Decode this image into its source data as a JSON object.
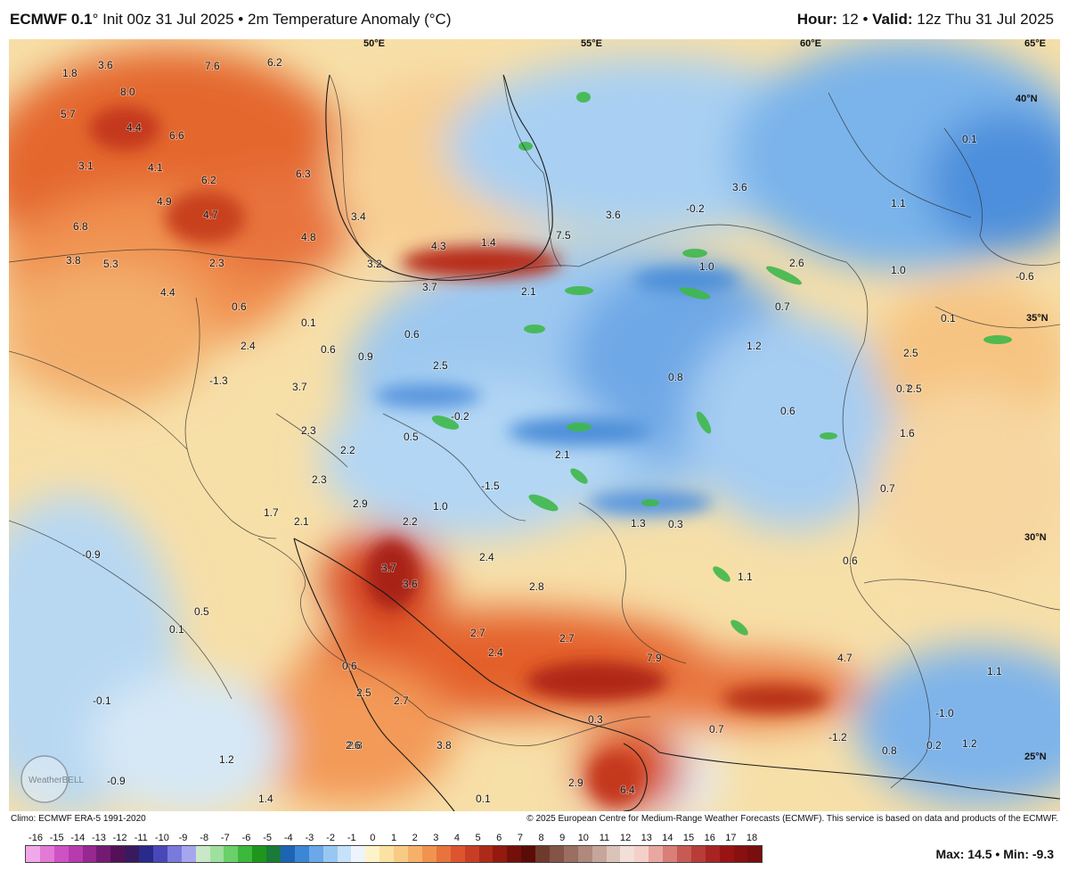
{
  "header": {
    "model": "ECMWF 0.1",
    "model_deg": "°",
    "init_text": "Init 00z 31 Jul 2025",
    "bullet": "•",
    "field": "2m Temperature Anomaly (°C)",
    "hour_label": "Hour:",
    "hour_value": "12",
    "valid_label": "Valid:",
    "valid_value": "12z Thu 31 Jul 2025"
  },
  "map": {
    "coord_labels": [
      "50°E",
      "55°E",
      "60°E",
      "65°E",
      "40°N",
      "35°N",
      "30°N",
      "25°N"
    ],
    "anomaly_labels": [
      "1.8",
      "3.6",
      "7.6",
      "6.2",
      "8.0",
      "5.7",
      "4.4",
      "6.6",
      "3.1",
      "4.1",
      "6.2",
      "6.3",
      "4.9",
      "4.7",
      "6.8",
      "3.4",
      "3.8",
      "5.3",
      "4.8",
      "4.3",
      "1.4",
      "7.5",
      "3.6",
      "3.6",
      "-0.2",
      "2.3",
      "3.2",
      "4.4",
      "3.7",
      "2.1",
      "1.0",
      "2.6",
      "0.6",
      "0.1",
      "0.6",
      "0.9",
      "0.6",
      "2.5",
      "0.7",
      "1.2",
      "2.4",
      "-1.3",
      "3.7",
      "-0.2",
      "0.8",
      "0.6",
      "1.0",
      "0.7",
      "2.3",
      "2.2",
      "0.5",
      "2.1",
      "-1.5",
      "2.3",
      "2.9",
      "1.7",
      "2.1",
      "2.2",
      "1.0",
      "1.3",
      "0.3",
      "-0.9",
      "3.7",
      "3.6",
      "2.4",
      "2.8",
      "1.1",
      "0.5",
      "0.1",
      "2.7",
      "2.7",
      "2.4",
      "7.9",
      "0.6",
      "2.5",
      "2.7",
      "3.8",
      "2.8",
      "0.3",
      "-0.1",
      "2.6",
      "1.2",
      "-0.9",
      "1.4",
      "0.1",
      "2.9",
      "6.4",
      "0.7",
      "-1.2",
      "0.8",
      "0.2",
      "1.2",
      "4.7",
      "1.1",
      "-1.0",
      "0.1",
      "1.1",
      "-0.6",
      "0.1",
      "2.5",
      "2.5",
      "1.6",
      "0.7",
      "0.6",
      "0.6",
      "0.1"
    ],
    "watermark": "WeatherBELL"
  },
  "credits": {
    "climo": "Climo: ECMWF ERA-5 1991-2020",
    "copyright": "© 2025 European Centre for Medium-Range Weather Forecasts (ECMWF). This service is based on data and products of the ECMWF."
  },
  "colorbar": {
    "ticks": [
      "-16",
      "-15",
      "-14",
      "-13",
      "-12",
      "-11",
      "-10",
      "-9",
      "-8",
      "-7",
      "-6",
      "-5",
      "-4",
      "-3",
      "-2",
      "-1",
      "0",
      "1",
      "2",
      "3",
      "4",
      "5",
      "6",
      "7",
      "8",
      "9",
      "10",
      "11",
      "12",
      "13",
      "14",
      "15",
      "16",
      "17",
      "18"
    ],
    "colors": [
      "#f0a8e8",
      "#e27ad6",
      "#cf52c4",
      "#b73aae",
      "#96288f",
      "#741a72",
      "#531257",
      "#3a1a5e",
      "#2a2a8a",
      "#4848b8",
      "#7a7adc",
      "#a6a6ee",
      "#c8e8c8",
      "#9ee09e",
      "#6ad06a",
      "#3cb83c",
      "#1e961e",
      "#1a7a3a",
      "#1e64b4",
      "#3c86d6",
      "#6aa8e8",
      "#98c8f2",
      "#c6e2fa",
      "#eef4fb",
      "#fdf3c8",
      "#fbe2a2",
      "#f8cb84",
      "#f5b06a",
      "#f09350",
      "#e8733c",
      "#dc5530",
      "#c83e24",
      "#ae2a18",
      "#921a10",
      "#74100a",
      "#5a0c08",
      "#6e3a2c",
      "#845446",
      "#9a6e60",
      "#b0897c",
      "#c6a69a",
      "#dcc3ba",
      "#f1dfd8",
      "#f5d0c8",
      "#e8a8a0",
      "#d88078",
      "#c85a54",
      "#b83c38",
      "#a82422",
      "#981414",
      "#881010",
      "#780e0e"
    ]
  },
  "stats": {
    "max_label": "Max:",
    "max_value": "14.5",
    "min_label": "Min:",
    "min_value": "-9.3",
    "bullet": "•"
  }
}
